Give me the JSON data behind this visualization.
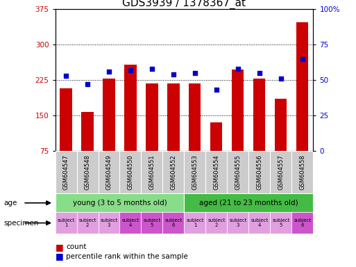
{
  "title": "GDS3939 / 1378367_at",
  "samples": [
    "GSM604547",
    "GSM604548",
    "GSM604549",
    "GSM604550",
    "GSM604551",
    "GSM604552",
    "GSM604553",
    "GSM604554",
    "GSM604555",
    "GSM604556",
    "GSM604557",
    "GSM604558"
  ],
  "bar_values": [
    208,
    158,
    228,
    258,
    218,
    218,
    218,
    135,
    248,
    228,
    185,
    348
  ],
  "percentile_values": [
    53,
    47,
    56,
    57,
    58,
    54,
    55,
    43,
    58,
    55,
    51,
    65
  ],
  "ylim_left": [
    75,
    375
  ],
  "ylim_right": [
    0,
    100
  ],
  "yticks_left": [
    75,
    150,
    225,
    300,
    375
  ],
  "yticks_right": [
    0,
    25,
    50,
    75,
    100
  ],
  "bar_color": "#cc0000",
  "dot_color": "#0000cc",
  "age_groups": [
    {
      "label": "young (3 to 5 months old)",
      "start": 0,
      "end": 6,
      "color": "#88dd88"
    },
    {
      "label": "aged (21 to 23 months old)",
      "start": 6,
      "end": 12,
      "color": "#44bb44"
    }
  ],
  "specimen_colors": [
    "#e0a0e0",
    "#e0a0e0",
    "#e0a0e0",
    "#cc55cc",
    "#cc55cc",
    "#cc55cc",
    "#e0a0e0",
    "#e0a0e0",
    "#e0a0e0",
    "#e0a0e0",
    "#e0a0e0",
    "#cc55cc"
  ],
  "specimen_labels": [
    "subject\n1",
    "subject\n2",
    "subject\n3",
    "subject\n4",
    "subject\n5",
    "subject\n6",
    "subject\n1",
    "subject\n2",
    "subject\n3",
    "subject\n4",
    "subject\n5",
    "subject\n6"
  ],
  "bar_label_color": "#cc0000",
  "right_label_color": "#0000cc",
  "background_color": "#ffffff",
  "title_fontsize": 11,
  "tick_fontsize": 7.5,
  "sample_fontsize": 6,
  "annot_fontsize": 7.5
}
